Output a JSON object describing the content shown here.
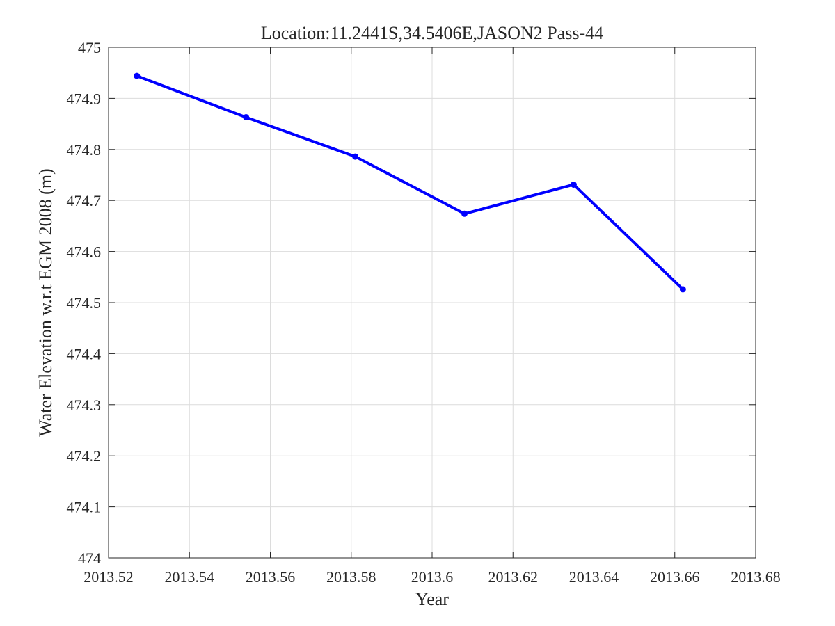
{
  "chart_data": {
    "type": "line",
    "title": "Location:11.2441S,34.5406E,JASON2 Pass-44",
    "xlabel": "Year",
    "ylabel": "Water Elevation w.r.t EGM 2008 (m)",
    "xlim": [
      2013.52,
      2013.68
    ],
    "ylim": [
      474,
      475
    ],
    "xticks": [
      2013.52,
      2013.54,
      2013.56,
      2013.58,
      2013.6,
      2013.62,
      2013.64,
      2013.66,
      2013.68
    ],
    "xtick_labels": [
      "2013.52",
      "2013.54",
      "2013.56",
      "2013.58",
      "2013.6",
      "2013.62",
      "2013.64",
      "2013.66",
      "2013.68"
    ],
    "yticks": [
      474,
      474.1,
      474.2,
      474.3,
      474.4,
      474.5,
      474.6,
      474.7,
      474.8,
      474.9,
      475
    ],
    "ytick_labels": [
      "474",
      "474.1",
      "474.2",
      "474.3",
      "474.4",
      "474.5",
      "474.6",
      "474.7",
      "474.8",
      "474.9",
      "475"
    ],
    "grid": true,
    "series": [
      {
        "x": [
          2013.527,
          2013.554,
          2013.581,
          2013.608,
          2013.635,
          2013.662
        ],
        "y": [
          474.944,
          474.863,
          474.786,
          474.674,
          474.731,
          474.526
        ],
        "color": "#0000ff",
        "marker": "dot"
      }
    ]
  }
}
